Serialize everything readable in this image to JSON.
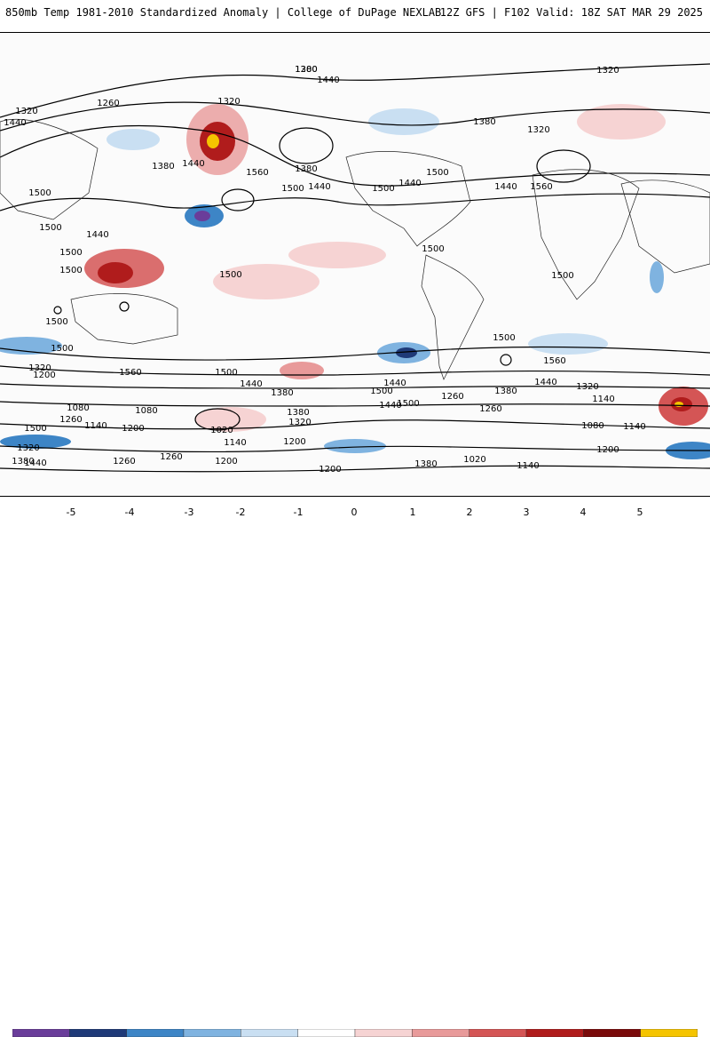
{
  "header": {
    "title": "850mb Temp 1981-2010 Standardized Anomaly | College of DuPage NEXLAB",
    "run": "12Z GFS | F102 Valid: 18Z SAT MAR 29 2025"
  },
  "contour_labels": [
    "1380",
    "1440",
    "1320",
    "1320",
    "1260",
    "1320",
    "1440",
    "1380",
    "1440",
    "1560",
    "1380",
    "1500",
    "1440",
    "1500",
    "1440",
    "1380",
    "1320",
    "1440",
    "1560",
    "1500",
    "1500",
    "1440",
    "1500",
    "1500",
    "1500",
    "1500",
    "1500",
    "1500",
    "1500",
    "1500",
    "1500",
    "1560",
    "1500",
    "1440",
    "1320",
    "1200",
    "1440",
    "1380",
    "1500",
    "1440",
    "1500",
    "1260",
    "1380",
    "1440",
    "1320",
    "1140",
    "1080",
    "1260",
    "1140",
    "1200",
    "1080",
    "1020",
    "1140",
    "1380",
    "1320",
    "1200",
    "1260",
    "1140",
    "1200",
    "1260",
    "1200",
    "1200",
    "1380",
    "1020",
    "1080",
    "1140",
    "1560",
    "1500",
    "1320",
    "1260",
    "1440",
    "1380",
    "1200"
  ],
  "colorbar": {
    "ticks": [
      "-5",
      "-4",
      "-3",
      "-2",
      "-1",
      "0",
      "1",
      "2",
      "3",
      "4",
      "5"
    ],
    "colors": [
      "#6a3d9a",
      "#1f3a78",
      "#3d85c6",
      "#7fb3e0",
      "#c9dff2",
      "#ffffff",
      "#f6d3d3",
      "#e89a9a",
      "#d45555",
      "#b01c1c",
      "#7a0a0a",
      "#f5c400"
    ]
  }
}
